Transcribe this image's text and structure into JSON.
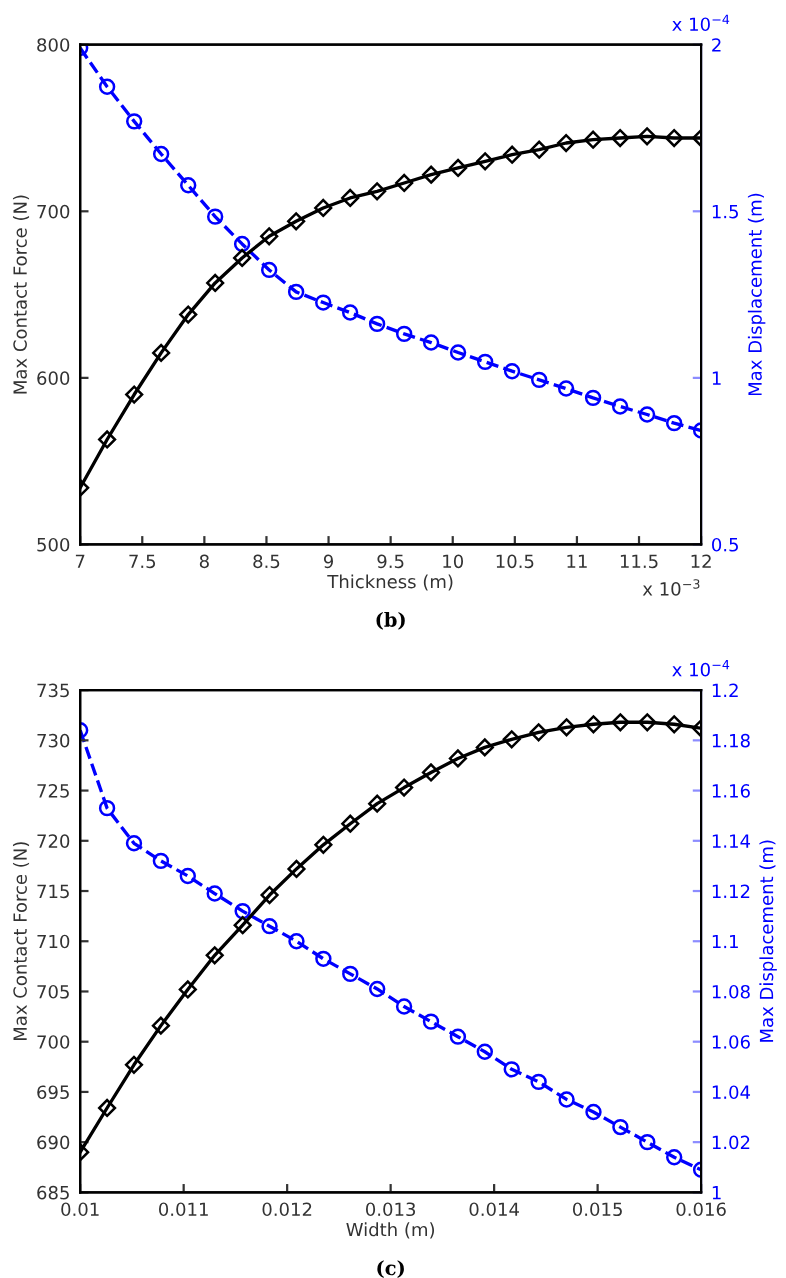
{
  "chart_data": [
    {
      "type": "line",
      "xlabel": "Thickness (m)",
      "ylabel": "Max Contact Force (N)",
      "y2label": "Max Displacement (m)",
      "annotations": [
        "x 10$^{−4}$",
        "x 10$^{−3}$",
        "(b)"
      ],
      "x": [
        7.0,
        7.217,
        7.435,
        7.652,
        7.87,
        8.087,
        8.304,
        8.522,
        8.739,
        8.957,
        9.174,
        9.391,
        9.609,
        9.826,
        10.043,
        10.261,
        10.478,
        10.696,
        10.913,
        11.13,
        11.348,
        11.565,
        11.783,
        12.0
      ],
      "xlim": [
        7,
        12
      ],
      "xticks": [
        7,
        7.5,
        8,
        8.5,
        9,
        9.5,
        10,
        10.5,
        11,
        11.5,
        12
      ],
      "ylim": [
        500,
        800
      ],
      "yticks": [
        500,
        600,
        700,
        800
      ],
      "y2lim": [
        0.5,
        2
      ],
      "y2ticks": [
        0.5,
        1,
        1.5,
        2
      ],
      "series": [
        {
          "color": "#000000",
          "marker": "diamond",
          "line_style": "solid",
          "values": [
            534,
            563,
            590,
            615,
            638,
            657,
            672,
            685,
            694,
            702,
            708,
            712,
            717,
            722,
            726,
            730,
            734,
            737,
            741,
            743,
            744,
            745,
            744,
            744
          ]
        },
        {
          "color": "#0000ff",
          "marker": "circle",
          "line_style": "dashed",
          "axis": "y2",
          "values": [
            1.99,
            1.874,
            1.77,
            1.672,
            1.578,
            1.484,
            1.402,
            1.324,
            1.258,
            1.226,
            1.196,
            1.162,
            1.132,
            1.106,
            1.076,
            1.048,
            1.02,
            0.994,
            0.968,
            0.94,
            0.914,
            0.89,
            0.864,
            0.842
          ]
        }
      ]
    },
    {
      "type": "line",
      "xlabel": "Width (m)",
      "ylabel": "Max Contact Force (N)",
      "y2label": "Max Displacement (m)",
      "annotations": [
        "x 10$^{−4}$",
        "(c)"
      ],
      "x": [
        0.01,
        0.01026,
        0.01052,
        0.01078,
        0.01104,
        0.0113,
        0.01157,
        0.01183,
        0.01209,
        0.01235,
        0.01261,
        0.01287,
        0.01313,
        0.01339,
        0.01365,
        0.01391,
        0.01417,
        0.01443,
        0.0147,
        0.01496,
        0.01522,
        0.01548,
        0.01574,
        0.016
      ],
      "xlim": [
        0.01,
        0.016
      ],
      "xticks": [
        0.01,
        0.011,
        0.012,
        0.013,
        0.014,
        0.015,
        0.016
      ],
      "ylim": [
        685,
        735
      ],
      "yticks": [
        685,
        690,
        695,
        700,
        705,
        710,
        715,
        720,
        725,
        730,
        735
      ],
      "y2lim": [
        1,
        1.2
      ],
      "y2ticks": [
        1,
        1.02,
        1.04,
        1.06,
        1.08,
        1.1,
        1.12,
        1.14,
        1.16,
        1.18,
        1.2
      ],
      "series": [
        {
          "color": "#000000",
          "marker": "diamond",
          "line_style": "solid",
          "values": [
            689,
            693.4,
            697.7,
            701.6,
            705.2,
            708.6,
            711.6,
            714.6,
            717.2,
            719.6,
            721.7,
            723.7,
            725.3,
            726.8,
            728.2,
            729.3,
            730.1,
            730.8,
            731.3,
            731.6,
            731.8,
            731.8,
            731.6,
            731.2
          ]
        },
        {
          "color": "#0000ff",
          "marker": "circle",
          "line_style": "dashed",
          "axis": "y2",
          "values": [
            1.184,
            1.153,
            1.139,
            1.132,
            1.126,
            1.119,
            1.112,
            1.106,
            1.1,
            1.093,
            1.087,
            1.081,
            1.074,
            1.068,
            1.062,
            1.056,
            1.049,
            1.044,
            1.037,
            1.032,
            1.026,
            1.02,
            1.014,
            1.009
          ]
        }
      ]
    }
  ]
}
